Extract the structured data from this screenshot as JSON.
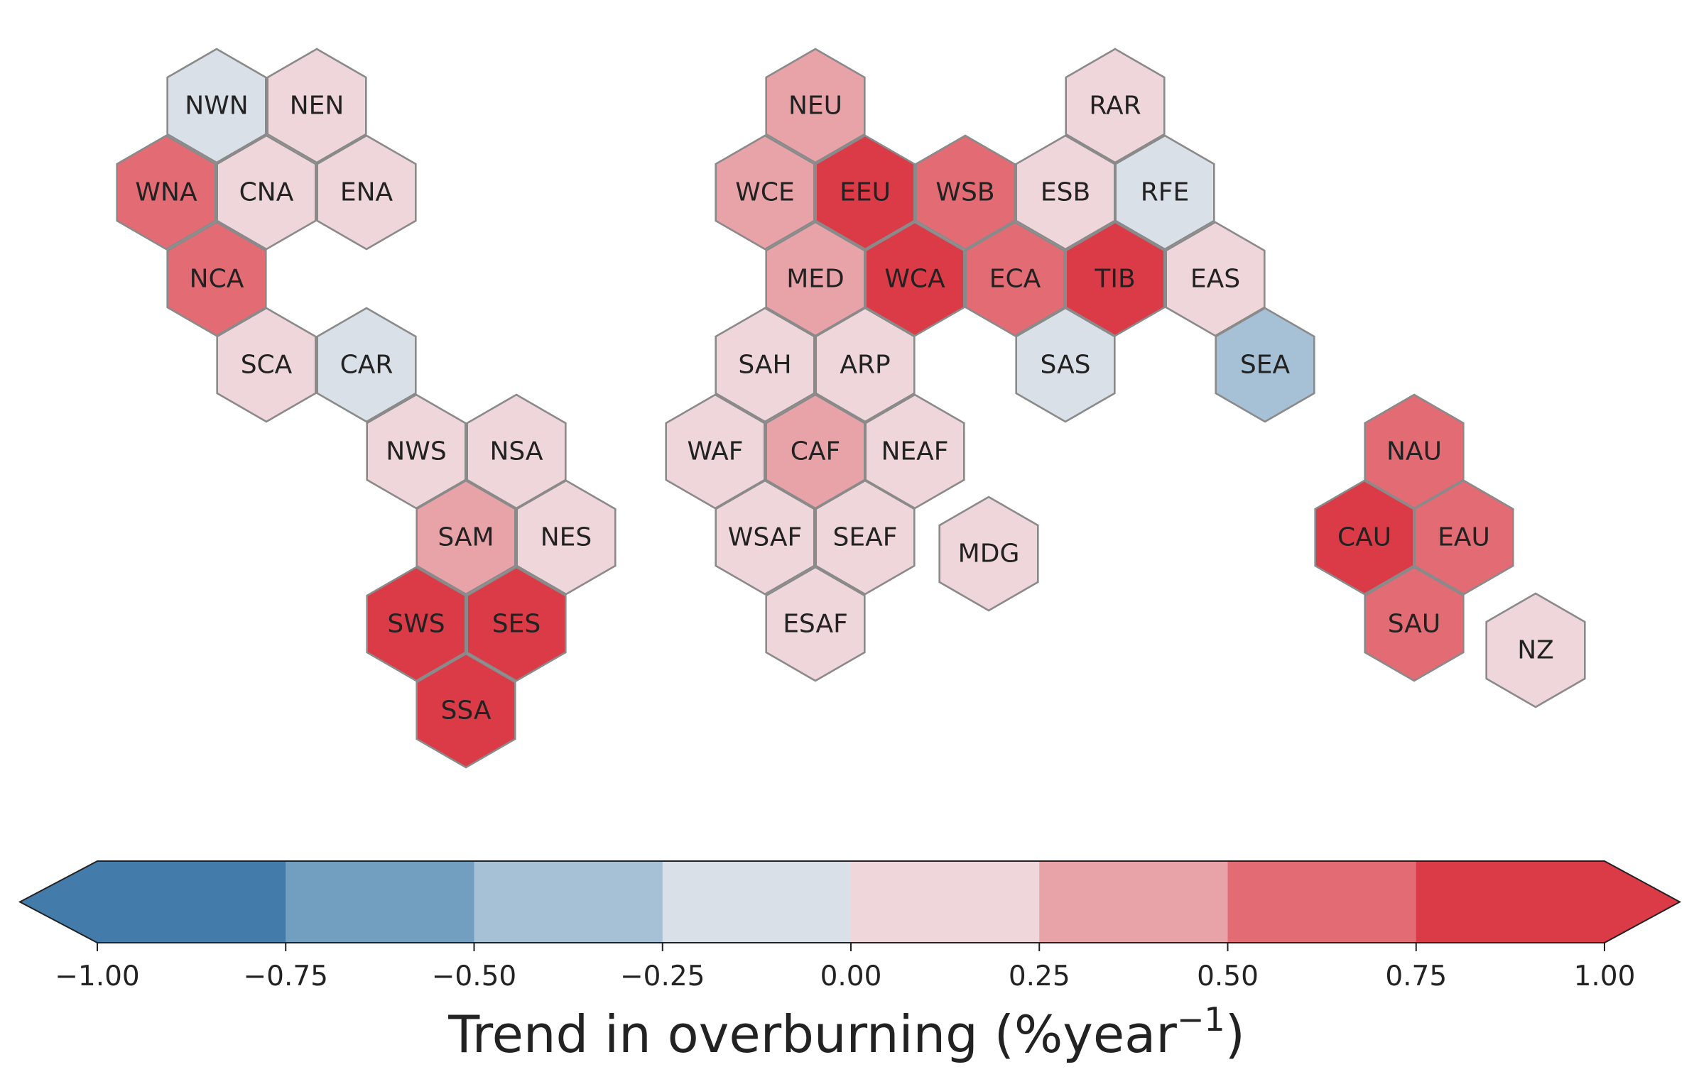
{
  "chart_data": {
    "type": "heatmap",
    "colorbar": {
      "label_main": "Trend in overburning (%year",
      "label_sup": "−1",
      "label_close": ")",
      "bins": [
        -1.0,
        -0.75,
        -0.5,
        -0.25,
        0.0,
        0.25,
        0.5,
        0.75,
        1.0
      ],
      "colors": [
        "#437cab",
        "#729fc0",
        "#a6c1d5",
        "#d9e0e7",
        "#efd6da",
        "#e8a3a9",
        "#e26b74",
        "#da3b47"
      ],
      "ticks": [
        -1.0,
        -0.75,
        -0.5,
        -0.25,
        0.0,
        0.25,
        0.5,
        0.75,
        1.0
      ],
      "tick_labels": [
        "−1.00",
        "−0.75",
        "−0.50",
        "−0.25",
        "0.00",
        "0.25",
        "0.50",
        "0.75",
        "1.00"
      ],
      "extend": "both"
    },
    "regions": [
      {
        "code": "NWN",
        "value": -0.1
      },
      {
        "code": "NEN",
        "value": 0.1
      },
      {
        "code": "WNA",
        "value": 0.6
      },
      {
        "code": "CNA",
        "value": 0.1
      },
      {
        "code": "ENA",
        "value": 0.1
      },
      {
        "code": "NCA",
        "value": 0.6
      },
      {
        "code": "SCA",
        "value": 0.1
      },
      {
        "code": "CAR",
        "value": -0.1
      },
      {
        "code": "NWS",
        "value": 0.1
      },
      {
        "code": "NSA",
        "value": 0.1
      },
      {
        "code": "SAM",
        "value": 0.4
      },
      {
        "code": "NES",
        "value": 0.1
      },
      {
        "code": "SWS",
        "value": 0.9
      },
      {
        "code": "SES",
        "value": 0.9
      },
      {
        "code": "SSA",
        "value": 0.9
      },
      {
        "code": "NEU",
        "value": 0.4
      },
      {
        "code": "RAR",
        "value": 0.1
      },
      {
        "code": "WCE",
        "value": 0.4
      },
      {
        "code": "EEU",
        "value": 0.9
      },
      {
        "code": "WSB",
        "value": 0.6
      },
      {
        "code": "ESB",
        "value": 0.1
      },
      {
        "code": "RFE",
        "value": -0.1
      },
      {
        "code": "MED",
        "value": 0.4
      },
      {
        "code": "WCA",
        "value": 0.9
      },
      {
        "code": "ECA",
        "value": 0.6
      },
      {
        "code": "TIB",
        "value": 0.9
      },
      {
        "code": "EAS",
        "value": 0.1
      },
      {
        "code": "SAH",
        "value": 0.1
      },
      {
        "code": "ARP",
        "value": 0.1
      },
      {
        "code": "SAS",
        "value": -0.1
      },
      {
        "code": "SEA",
        "value": -0.4
      },
      {
        "code": "WAF",
        "value": 0.1
      },
      {
        "code": "CAF",
        "value": 0.4
      },
      {
        "code": "NEAF",
        "value": 0.1
      },
      {
        "code": "WSAF",
        "value": 0.1
      },
      {
        "code": "SEAF",
        "value": 0.1
      },
      {
        "code": "MDG",
        "value": 0.1
      },
      {
        "code": "ESAF",
        "value": 0.1
      },
      {
        "code": "NAU",
        "value": 0.6
      },
      {
        "code": "CAU",
        "value": 0.9
      },
      {
        "code": "EAU",
        "value": 0.6
      },
      {
        "code": "SAU",
        "value": 0.6
      },
      {
        "code": "NZ",
        "value": 0.1
      }
    ]
  }
}
